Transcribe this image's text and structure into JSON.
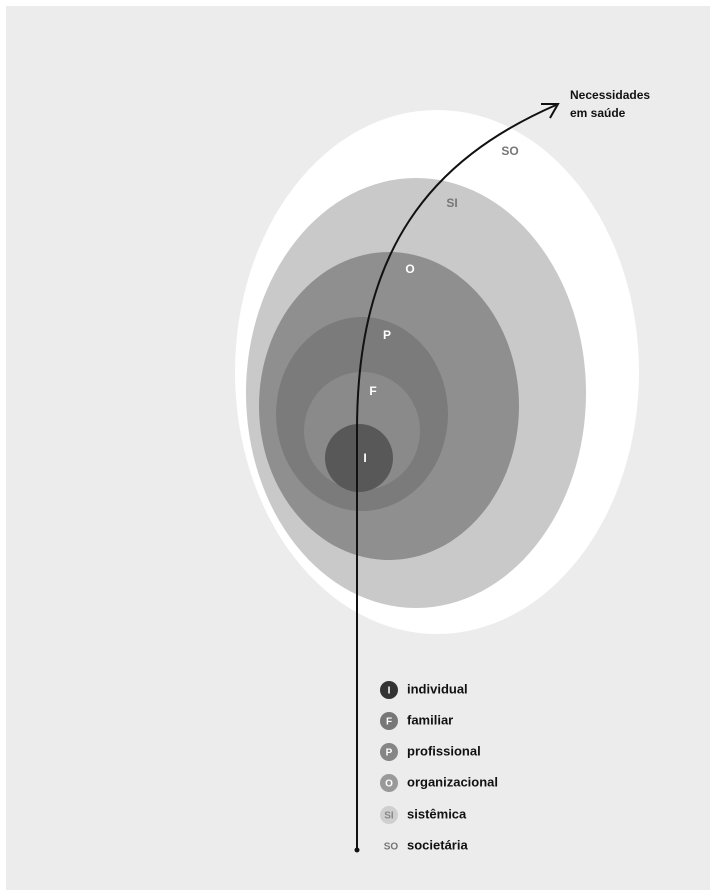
{
  "title": [
    "Necessidades",
    "em saúde"
  ],
  "legend": [
    {
      "abbr": "I",
      "name": "individual"
    },
    {
      "abbr": "F",
      "name": "familiar"
    },
    {
      "abbr": "P",
      "name": "profissional"
    },
    {
      "abbr": "O",
      "name": "organizacional"
    },
    {
      "abbr": "SI",
      "name": "sistêmica"
    },
    {
      "abbr": "SO",
      "name": "societária"
    }
  ]
}
